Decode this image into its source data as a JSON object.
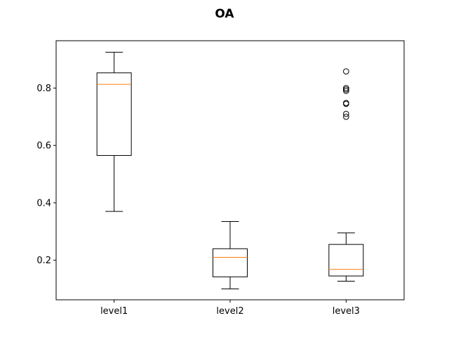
{
  "chart_data": {
    "type": "box",
    "title": "OA",
    "xlabel": "",
    "ylabel": "",
    "categories": [
      "level1",
      "level2",
      "level3"
    ],
    "ylim": [
      0.062,
      0.965
    ],
    "yticks": [
      0.2,
      0.4,
      0.6,
      0.8
    ],
    "grid": false,
    "boxes": [
      {
        "category": "level1",
        "whisker_low": 0.37,
        "q1": 0.565,
        "median": 0.813,
        "q3": 0.853,
        "whisker_high": 0.925,
        "outliers": []
      },
      {
        "category": "level2",
        "whisker_low": 0.1,
        "q1": 0.142,
        "median": 0.21,
        "q3": 0.24,
        "whisker_high": 0.335,
        "outliers": []
      },
      {
        "category": "level3",
        "whisker_low": 0.127,
        "q1": 0.145,
        "median": 0.168,
        "q3": 0.255,
        "whisker_high": 0.295,
        "outliers": [
          0.7,
          0.71,
          0.745,
          0.748,
          0.79,
          0.795,
          0.8,
          0.858
        ]
      }
    ],
    "colors": {
      "box": "#000000",
      "median": "#ff7f0e",
      "outlier": "#000000"
    }
  }
}
